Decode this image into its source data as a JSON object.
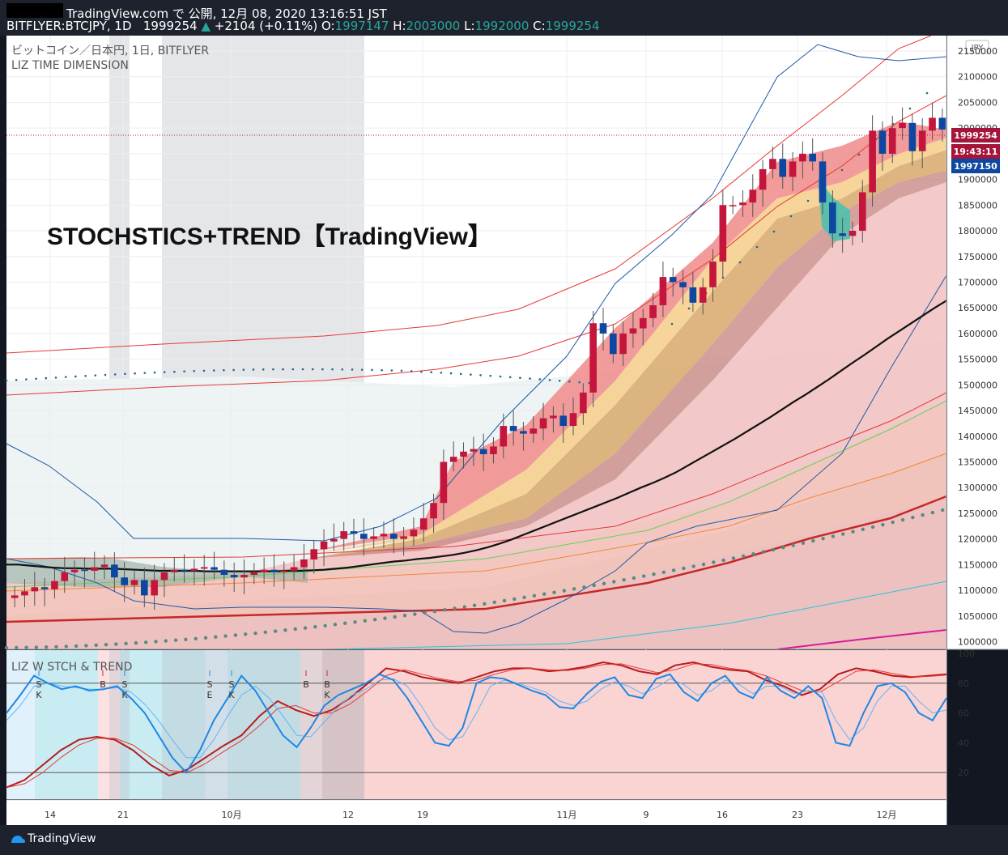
{
  "header": {
    "publish_line": "TradingView.com で 公開, 12月 08, 2020 13:16:51 JST",
    "symbol": "BITFLYER:BTCJPY, 1D",
    "price": "1999254",
    "change": "+2104 (+0.11%)",
    "o_label": "O:",
    "o_value": "1997147",
    "h_label": "H:",
    "h_value": "2003000",
    "l_label": "L:",
    "l_value": "1992000",
    "c_label": "C:",
    "c_value": "1999254"
  },
  "footer": {
    "brand": "TradingView"
  },
  "colors": {
    "bull": "#c4163d",
    "bear": "#0d47a1",
    "background": "#ffffff",
    "trend_area": "#f4c6c6"
  },
  "chart_data": [
    {
      "type": "candlestick",
      "title": "ビットコイン／日本円, 1日, BITFLYER",
      "indicator": "LIZ TIME DIMENSION",
      "annotation": "STOCHSTICS+TREND【TradingView】",
      "currency": "JPY",
      "y_ticks": [
        1000000,
        1050000,
        1100000,
        1150000,
        1200000,
        1250000,
        1300000,
        1350000,
        1400000,
        1450000,
        1500000,
        1550000,
        1600000,
        1650000,
        1700000,
        1750000,
        1800000,
        1850000,
        1900000,
        1950000,
        2000000,
        2050000,
        2100000,
        2150000
      ],
      "ylim": [
        985000,
        2180000
      ],
      "x_ticks": [
        "14",
        "21",
        "10月",
        "12",
        "19",
        "11月",
        "9",
        "16",
        "23",
        "12月"
      ],
      "price_labels": {
        "last": "1999254",
        "countdown": "19:43:11",
        "ref": "1997150"
      },
      "close": [
        1090000,
        1098000,
        1106000,
        1102000,
        1118000,
        1135000,
        1140000,
        1138000,
        1145000,
        1150000,
        1125000,
        1110000,
        1120000,
        1090000,
        1120000,
        1135000,
        1140000,
        1138000,
        1142000,
        1145000,
        1140000,
        1130000,
        1125000,
        1130000,
        1135000,
        1140000,
        1135000,
        1138000,
        1145000,
        1160000,
        1180000,
        1195000,
        1200000,
        1215000,
        1210000,
        1200000,
        1205000,
        1210000,
        1200000,
        1205000,
        1218000,
        1240000,
        1270000,
        1350000,
        1360000,
        1370000,
        1375000,
        1365000,
        1380000,
        1420000,
        1410000,
        1405000,
        1415000,
        1435000,
        1440000,
        1420000,
        1445000,
        1485000,
        1620000,
        1600000,
        1560000,
        1600000,
        1610000,
        1630000,
        1655000,
        1710000,
        1700000,
        1690000,
        1660000,
        1690000,
        1740000,
        1850000,
        1850000,
        1855000,
        1880000,
        1920000,
        1940000,
        1905000,
        1935000,
        1950000,
        1935000,
        1855000,
        1795000,
        1790000,
        1800000,
        1875000,
        1995000,
        1950000,
        2000000,
        2010000,
        1955000,
        1995000,
        2020000,
        1997150
      ],
      "open": [
        1085000,
        1090000,
        1098000,
        1106000,
        1102000,
        1118000,
        1135000,
        1140000,
        1138000,
        1145000,
        1150000,
        1125000,
        1110000,
        1120000,
        1090000,
        1120000,
        1135000,
        1140000,
        1138000,
        1142000,
        1145000,
        1140000,
        1130000,
        1125000,
        1130000,
        1135000,
        1140000,
        1135000,
        1138000,
        1145000,
        1160000,
        1180000,
        1195000,
        1200000,
        1215000,
        1210000,
        1200000,
        1205000,
        1210000,
        1200000,
        1205000,
        1218000,
        1240000,
        1270000,
        1350000,
        1360000,
        1370000,
        1375000,
        1365000,
        1380000,
        1420000,
        1410000,
        1405000,
        1415000,
        1435000,
        1440000,
        1420000,
        1445000,
        1485000,
        1620000,
        1600000,
        1560000,
        1600000,
        1610000,
        1630000,
        1655000,
        1710000,
        1700000,
        1690000,
        1660000,
        1690000,
        1740000,
        1850000,
        1850000,
        1855000,
        1880000,
        1920000,
        1940000,
        1905000,
        1935000,
        1950000,
        1935000,
        1855000,
        1795000,
        1790000,
        1800000,
        1875000,
        1995000,
        1950000,
        2000000,
        2010000,
        1955000,
        1995000,
        2020000
      ],
      "series": [
        {
          "name": "Moving average (long)",
          "values": [
            1150000,
            1150000,
            1148000,
            1146000,
            1144000,
            1143000,
            1143000,
            1142000,
            1142000,
            1142000,
            1141000,
            1140000,
            1139000,
            1138000,
            1138000,
            1138000,
            1138000,
            1137000,
            1137000,
            1137000,
            1137000,
            1137000,
            1137000,
            1137000,
            1138000,
            1138000,
            1139000,
            1140000,
            1142000,
            1144000,
            1147000,
            1150000,
            1153000,
            1156000,
            1158000,
            1161000,
            1163000,
            1166000,
            1169000,
            1173000,
            1178000,
            1184000,
            1191000,
            1199000,
            1208000,
            1217000,
            1226000,
            1235000,
            1244000,
            1253000,
            1262000,
            1271000,
            1280000,
            1290000,
            1300000,
            1309000,
            1319000,
            1330000,
            1343000,
            1356000,
            1369000,
            1382000,
            1395000,
            1409000,
            1423000,
            1437000,
            1452000,
            1467000,
            1481000,
            1496000,
            1511000,
            1527000,
            1543000,
            1558000,
            1574000,
            1590000,
            1605000,
            1620000,
            1635000,
            1650000,
            1664000
          ]
        }
      ]
    },
    {
      "type": "line",
      "title": "LIZ W STCH & TREND",
      "ylim": [
        0,
        100
      ],
      "y_ticks": [
        20,
        40,
        60,
        80,
        100
      ],
      "levels": [
        20,
        80
      ],
      "signal_labels": [
        {
          "top": "I",
          "mid": "S",
          "bot": "K"
        },
        {
          "top": "I",
          "mid": "B",
          "bot": ""
        },
        {
          "top": "I",
          "mid": "S",
          "bot": "K"
        },
        {
          "top": "I",
          "mid": "S",
          "bot": "E"
        },
        {
          "top": "I",
          "mid": "S",
          "bot": "K"
        },
        {
          "top": "I",
          "mid": "B",
          "bot": ""
        },
        {
          "top": "I",
          "mid": "B",
          "bot": "K"
        }
      ],
      "series": [
        {
          "name": "Stoch %K",
          "values": [
            60,
            72,
            85,
            80,
            76,
            78,
            75,
            76,
            78,
            70,
            60,
            45,
            30,
            20,
            35,
            55,
            70,
            85,
            75,
            60,
            45,
            37,
            50,
            65,
            72,
            76,
            80,
            86,
            82,
            70,
            55,
            40,
            38,
            50,
            80,
            84,
            83,
            79,
            75,
            72,
            64,
            63,
            73,
            81,
            84,
            72,
            70,
            83,
            86,
            74,
            68,
            80,
            85,
            74,
            70,
            84,
            75,
            70,
            78,
            70,
            40,
            38,
            60,
            78,
            80,
            74,
            60,
            55,
            70
          ]
        },
        {
          "name": "Stoch %D",
          "values": [
            55,
            65,
            78,
            80,
            78,
            77,
            76,
            76,
            77,
            74,
            66,
            55,
            42,
            30,
            30,
            42,
            58,
            72,
            78,
            70,
            58,
            45,
            44,
            54,
            64,
            72,
            76,
            82,
            83,
            78,
            65,
            50,
            42,
            44,
            60,
            78,
            82,
            80,
            77,
            74,
            68,
            65,
            68,
            76,
            81,
            78,
            73,
            77,
            83,
            79,
            72,
            75,
            82,
            79,
            73,
            78,
            78,
            73,
            75,
            74,
            55,
            42,
            50,
            68,
            78,
            78,
            68,
            60,
            62
          ]
        },
        {
          "name": "Trend",
          "values": [
            10,
            15,
            25,
            35,
            42,
            44,
            42,
            35,
            25,
            18,
            22,
            30,
            38,
            45,
            58,
            68,
            62,
            58,
            62,
            70,
            80,
            90,
            88,
            84,
            82,
            80,
            84,
            88,
            90,
            90,
            88,
            89,
            91,
            94,
            92,
            88,
            86,
            92,
            94,
            91,
            89,
            88,
            82,
            78,
            72,
            76,
            86,
            90,
            88,
            85,
            84,
            85,
            86
          ]
        }
      ]
    }
  ]
}
